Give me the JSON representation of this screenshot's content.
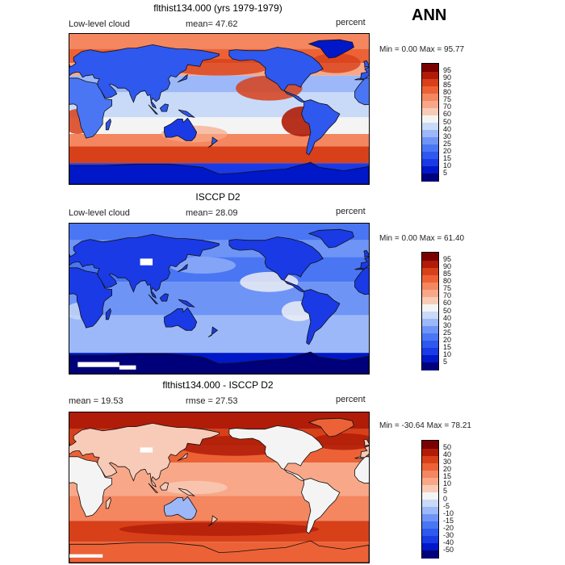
{
  "season": "ANN",
  "units": "percent",
  "land_outline_color": "#111111",
  "panels": [
    {
      "title": "flthist134.000 (yrs 1979-1979)",
      "left_label": "Low-level cloud",
      "center_label": "mean=  47.62",
      "right_label": "percent",
      "min_max": "Min =    0.00 Max =   95.77"
    },
    {
      "title": "ISCCP D2",
      "left_label": "Low-level cloud",
      "center_label": "mean=  28.09",
      "right_label": "percent",
      "min_max": "Min =    0.00 Max =   61.40"
    },
    {
      "title": "flthist134.000 - ISCCP D2",
      "left_label": "mean =  19.53",
      "center_label": "rmse =  27.53",
      "right_label": "percent",
      "min_max": "Min = -30.64 Max =  78.21"
    }
  ],
  "chart_data": [
    {
      "type": "heatmap",
      "title": "flthist134.000 (yrs 1979-1979)",
      "variable": "Low-level cloud",
      "units": "percent",
      "mean": 47.62,
      "min": 0.0,
      "max": 95.77,
      "colorbar_levels": [
        5,
        10,
        15,
        20,
        25,
        30,
        40,
        50,
        60,
        70,
        75,
        80,
        85,
        90,
        95
      ],
      "colorbar_colors": [
        "#00007a",
        "#0018c8",
        "#1a3ae6",
        "#2e58ee",
        "#4a76f4",
        "#6e94f6",
        "#9cb8f8",
        "#c8daf8",
        "#f4f4f4",
        "#f8cbb8",
        "#f8a888",
        "#f48660",
        "#ec6236",
        "#d8401a",
        "#b01c08",
        "#7a0000"
      ]
    },
    {
      "type": "heatmap",
      "title": "ISCCP D2",
      "variable": "Low-level cloud",
      "units": "percent",
      "mean": 28.09,
      "min": 0.0,
      "max": 61.4,
      "colorbar_levels": [
        5,
        10,
        15,
        20,
        25,
        30,
        40,
        50,
        60,
        70,
        75,
        80,
        85,
        90,
        95
      ],
      "colorbar_colors": [
        "#00007a",
        "#0018c8",
        "#1a3ae6",
        "#2e58ee",
        "#4a76f4",
        "#6e94f6",
        "#9cb8f8",
        "#c8daf8",
        "#f4f4f4",
        "#f8cbb8",
        "#f8a888",
        "#f48660",
        "#ec6236",
        "#d8401a",
        "#b01c08",
        "#7a0000"
      ]
    },
    {
      "type": "heatmap",
      "title": "flthist134.000 - ISCCP D2",
      "units": "percent",
      "mean": 19.53,
      "rmse": 27.53,
      "min": -30.64,
      "max": 78.21,
      "colorbar_levels": [
        -50,
        -40,
        -30,
        -20,
        -15,
        -10,
        -5,
        0,
        5,
        10,
        15,
        20,
        30,
        40,
        50
      ],
      "colorbar_colors": [
        "#00007a",
        "#0018c8",
        "#1a3ae6",
        "#2e58ee",
        "#4a76f4",
        "#6e94f6",
        "#9cb8f8",
        "#c8daf8",
        "#f4f4f4",
        "#f8cbb8",
        "#f8a888",
        "#f48660",
        "#ec6236",
        "#d8401a",
        "#b01c08",
        "#7a0000"
      ]
    }
  ]
}
